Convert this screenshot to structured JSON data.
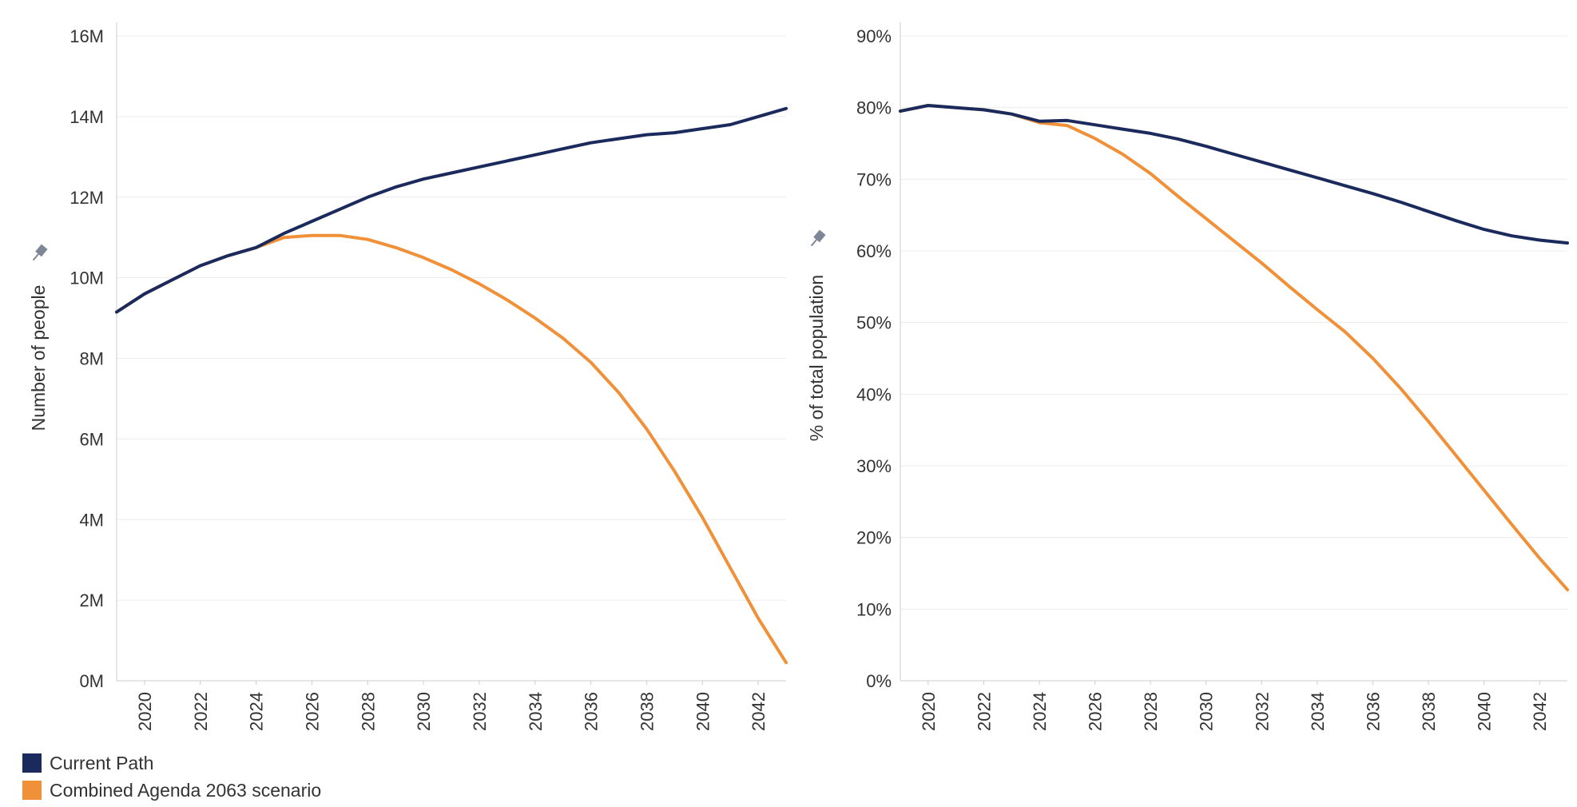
{
  "colors": {
    "current_path": "#1b2a5c",
    "agenda_2063": "#f0913a",
    "grid": "#ececec",
    "axis": "#cccccc"
  },
  "legend": {
    "items": [
      {
        "label": "Current Path",
        "color": "#1b2a5c"
      },
      {
        "label": "Combined Agenda 2063 scenario",
        "color": "#f0913a"
      }
    ]
  },
  "chart_data": [
    {
      "type": "line",
      "title": "",
      "xlabel": "",
      "ylabel": "Number of people",
      "xlim": [
        2019,
        2043
      ],
      "ylim": [
        0,
        16
      ],
      "y_ticks": [
        0,
        2,
        4,
        6,
        8,
        10,
        12,
        14,
        16
      ],
      "y_tick_labels": [
        "0M",
        "2M",
        "4M",
        "6M",
        "8M",
        "10M",
        "12M",
        "14M",
        "16M"
      ],
      "x_ticks": [
        2020,
        2022,
        2024,
        2026,
        2028,
        2030,
        2032,
        2034,
        2036,
        2038,
        2040,
        2042
      ],
      "x_tick_labels": [
        "2020",
        "2022",
        "2024",
        "2026",
        "2028",
        "2030",
        "2032",
        "2034",
        "2036",
        "2038",
        "2040",
        "2042"
      ],
      "x": [
        2019,
        2020,
        2021,
        2022,
        2023,
        2024,
        2025,
        2026,
        2027,
        2028,
        2029,
        2030,
        2031,
        2032,
        2033,
        2034,
        2035,
        2036,
        2037,
        2038,
        2039,
        2040,
        2041,
        2042,
        2043
      ],
      "series": [
        {
          "name": "Current Path",
          "color": "#1b2a5c",
          "values": [
            9.15,
            9.6,
            9.95,
            10.3,
            10.55,
            10.75,
            11.1,
            11.4,
            11.7,
            12.0,
            12.25,
            12.45,
            12.6,
            12.75,
            12.9,
            13.05,
            13.2,
            13.35,
            13.45,
            13.55,
            13.6,
            13.7,
            13.8,
            14.0,
            14.2
          ]
        },
        {
          "name": "Combined Agenda 2063 scenario",
          "color": "#f0913a",
          "values": [
            9.15,
            9.6,
            9.95,
            10.3,
            10.55,
            10.75,
            11.0,
            11.05,
            11.05,
            10.95,
            10.75,
            10.5,
            10.2,
            9.85,
            9.45,
            9.0,
            8.5,
            7.9,
            7.15,
            6.25,
            5.2,
            4.05,
            2.8,
            1.55,
            0.45
          ]
        }
      ]
    },
    {
      "type": "line",
      "title": "",
      "xlabel": "",
      "ylabel": "% of total population",
      "xlim": [
        2019,
        2043
      ],
      "ylim": [
        0,
        90
      ],
      "y_ticks": [
        0,
        10,
        20,
        30,
        40,
        50,
        60,
        70,
        80,
        90
      ],
      "y_tick_labels": [
        "0%",
        "10%",
        "20%",
        "30%",
        "40%",
        "50%",
        "60%",
        "70%",
        "80%",
        "90%"
      ],
      "x_ticks": [
        2020,
        2022,
        2024,
        2026,
        2028,
        2030,
        2032,
        2034,
        2036,
        2038,
        2040,
        2042
      ],
      "x_tick_labels": [
        "2020",
        "2022",
        "2024",
        "2026",
        "2028",
        "2030",
        "2032",
        "2034",
        "2036",
        "2038",
        "2040",
        "2042"
      ],
      "x": [
        2019,
        2020,
        2021,
        2022,
        2023,
        2024,
        2025,
        2026,
        2027,
        2028,
        2029,
        2030,
        2031,
        2032,
        2033,
        2034,
        2035,
        2036,
        2037,
        2038,
        2039,
        2040,
        2041,
        2042,
        2043
      ],
      "series": [
        {
          "name": "Current Path",
          "color": "#1b2a5c",
          "values": [
            79.5,
            80.3,
            80.0,
            79.7,
            79.1,
            78.1,
            78.2,
            77.6,
            77.0,
            76.4,
            75.6,
            74.6,
            73.5,
            72.4,
            71.3,
            70.2,
            69.1,
            68.0,
            66.8,
            65.5,
            64.2,
            63.0,
            62.1,
            61.5,
            61.1
          ]
        },
        {
          "name": "Combined Agenda 2063 scenario",
          "color": "#f0913a",
          "values": [
            79.5,
            80.3,
            80.0,
            79.7,
            79.1,
            77.9,
            77.5,
            75.7,
            73.5,
            70.8,
            67.6,
            64.5,
            61.4,
            58.3,
            55.0,
            51.8,
            48.7,
            45.0,
            40.8,
            36.2,
            31.4,
            26.6,
            21.8,
            17.1,
            12.7
          ]
        }
      ]
    }
  ]
}
